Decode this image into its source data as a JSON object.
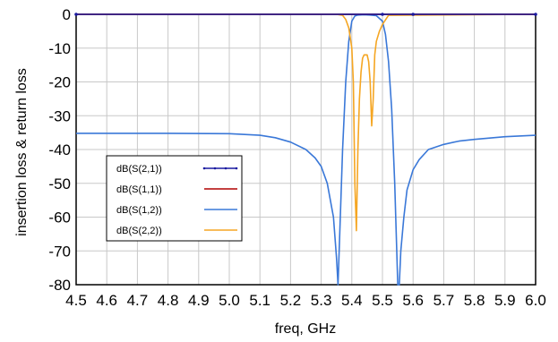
{
  "chart_data": {
    "type": "line",
    "xlabel": "freq, GHz",
    "ylabel": "insertion loss & return loss",
    "xlim": [
      4.5,
      6.0
    ],
    "ylim": [
      -80,
      0
    ],
    "grid": true,
    "legend_position": "center-left",
    "x_ticks": [
      "4.5",
      "4.6",
      "4.7",
      "4.8",
      "4.9",
      "5.0",
      "5.1",
      "5.2",
      "5.3",
      "5.4",
      "5.5",
      "5.6",
      "5.7",
      "5.8",
      "5.9",
      "6.0"
    ],
    "y_ticks": [
      "0",
      "-10",
      "-20",
      "-30",
      "-40",
      "-50",
      "-60",
      "-70",
      "-80"
    ],
    "series": [
      {
        "name": "dB(S(2,1))",
        "color": "#1a1aa0",
        "marker": "dot",
        "x": [
          4.5,
          5.5,
          5.6,
          6.0
        ],
        "y": [
          0,
          0,
          0,
          0
        ]
      },
      {
        "name": "dB(S(1,1))",
        "color": "#b00000",
        "x": [
          4.5,
          5.5,
          5.6,
          6.0
        ],
        "y": [
          0,
          0,
          0,
          0
        ]
      },
      {
        "name": "dB(S(1,2))",
        "color": "#3a78d8",
        "x": [
          4.5,
          4.8,
          5.0,
          5.1,
          5.15,
          5.2,
          5.25,
          5.28,
          5.3,
          5.32,
          5.34,
          5.35,
          5.355,
          5.37,
          5.38,
          5.39,
          5.4,
          5.41,
          5.42,
          5.44,
          5.46,
          5.48,
          5.5,
          5.51,
          5.52,
          5.53,
          5.54,
          5.55,
          5.555,
          5.56,
          5.57,
          5.58,
          5.6,
          5.62,
          5.65,
          5.7,
          5.75,
          5.8,
          5.9,
          6.0
        ],
        "y": [
          -35.2,
          -35.2,
          -35.3,
          -35.8,
          -36.5,
          -37.8,
          -40,
          -42.5,
          -45,
          -50,
          -60,
          -72,
          -80,
          -40,
          -20,
          -8,
          -2,
          -0.5,
          -0.2,
          -0.1,
          -0.2,
          -0.4,
          -2,
          -6,
          -14,
          -28,
          -50,
          -80,
          -80,
          -70,
          -60,
          -52,
          -46,
          -43,
          -40,
          -38.5,
          -37.5,
          -37,
          -36.2,
          -35.8
        ]
      },
      {
        "name": "dB(S(2,2))",
        "color": "#f5a623",
        "x": [
          4.5,
          5.35,
          5.37,
          5.38,
          5.39,
          5.4,
          5.405,
          5.41,
          5.415,
          5.42,
          5.425,
          5.43,
          5.435,
          5.44,
          5.45,
          5.455,
          5.46,
          5.465,
          5.47,
          5.475,
          5.48,
          5.49,
          5.5,
          5.52,
          6.0
        ],
        "y": [
          0,
          0,
          -0.3,
          -1.5,
          -4,
          -10,
          -20,
          -50,
          -64,
          -40,
          -25,
          -17,
          -13,
          -12,
          -12,
          -14,
          -20,
          -33,
          -25,
          -12,
          -8,
          -5,
          -3,
          -0.3,
          0
        ]
      }
    ]
  }
}
